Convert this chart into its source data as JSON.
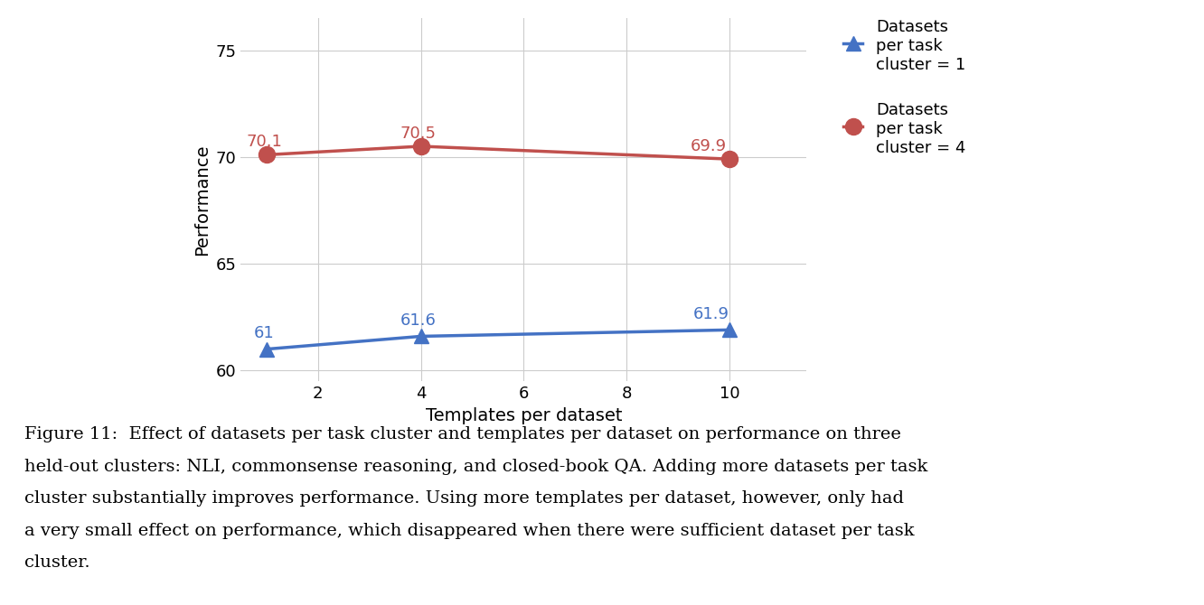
{
  "blue_x": [
    1,
    4,
    10
  ],
  "blue_y": [
    61.0,
    61.6,
    61.9
  ],
  "blue_labels": [
    "61",
    "61.6",
    "61.9"
  ],
  "blue_color": "#4472C4",
  "red_x": [
    1,
    4,
    10
  ],
  "red_y": [
    70.1,
    70.5,
    69.9
  ],
  "red_labels": [
    "70.1",
    "70.5",
    "69.9"
  ],
  "red_color": "#C0504D",
  "xlabel": "Templates per dataset",
  "ylabel": "Performance",
  "xlim": [
    0.5,
    11.5
  ],
  "ylim": [
    59.5,
    76.5
  ],
  "yticks": [
    60,
    65,
    70,
    75
  ],
  "xticks": [
    2,
    4,
    6,
    8,
    10
  ],
  "legend1_label": "Datasets\nper task\ncluster = 1",
  "legend2_label": "Datasets\nper task\ncluster = 4",
  "caption_bold": "Figure 11:",
  "caption_rest": "  Effect of datasets per task cluster and templates per dataset on performance on three held-out clusters: NLI, commonsense reasoning, and closed-book QA. Adding more datasets per task cluster substantially improves performance. Using more templates per dataset, however, only had a very small effect on performance, which disappeared when there were sufficient dataset per task cluster.",
  "bg_color": "#ffffff",
  "grid_color": "#cccccc"
}
